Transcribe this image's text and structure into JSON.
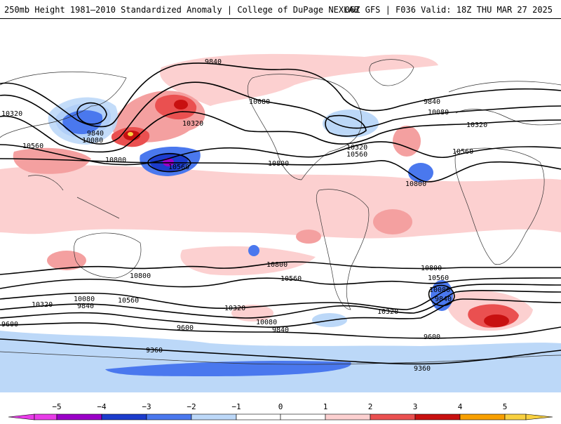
{
  "header": {
    "title_left": "250mb Height 1981–2010 Standardized Anomaly | College of DuPage NEXLAB",
    "title_right": "06Z GFS | F036 Valid: 18Z THU MAR 27 2025"
  },
  "colors": {
    "n5": "#e83ce8",
    "n4": "#9b00c8",
    "n3": "#1c3ccc",
    "n2": "#4a78ee",
    "n1": "#bcd8f8",
    "p1": "#fcd0d0",
    "p2": "#f4a0a0",
    "p3": "#ea5050",
    "p4": "#c81010",
    "p5": "#f8a000",
    "p6": "#f8d040",
    "contour": "#000000"
  },
  "colorbar": {
    "ticks": [
      "−5",
      "−4",
      "−3",
      "−2",
      "−1",
      "0",
      "1",
      "2",
      "3",
      "4",
      "5"
    ]
  },
  "contour_labels": [
    {
      "id": "l9840a",
      "text": "9840"
    },
    {
      "id": "l10080a",
      "text": "10080"
    },
    {
      "id": "l10320a",
      "text": "10320"
    },
    {
      "id": "l9840b",
      "text": "9840"
    },
    {
      "id": "l10080b",
      "text": "10080"
    },
    {
      "id": "l10560a",
      "text": "10560"
    },
    {
      "id": "l10800a",
      "text": "10800"
    },
    {
      "id": "l10560b",
      "text": "10560"
    },
    {
      "id": "l10320b",
      "text": "10320"
    },
    {
      "id": "l10800b",
      "text": "10800"
    },
    {
      "id": "l10320c",
      "text": "10320"
    },
    {
      "id": "l10560c",
      "text": "10560"
    },
    {
      "id": "l9840c",
      "text": "9840"
    },
    {
      "id": "l10080c",
      "text": "10080"
    },
    {
      "id": "l10320d",
      "text": "10320"
    },
    {
      "id": "l10560d",
      "text": "10560"
    },
    {
      "id": "l10800c",
      "text": "10800"
    },
    {
      "id": "l10800d",
      "text": "10800"
    },
    {
      "id": "l10800e",
      "text": "10800"
    },
    {
      "id": "l10560e",
      "text": "10560"
    },
    {
      "id": "l10560f",
      "text": "10560"
    },
    {
      "id": "l10320e",
      "text": "10320"
    },
    {
      "id": "l10080d",
      "text": "10080"
    },
    {
      "id": "l9840d",
      "text": "9840"
    },
    {
      "id": "l10320f",
      "text": "10320"
    },
    {
      "id": "l10080e",
      "text": "10080"
    },
    {
      "id": "l9840e",
      "text": "9840"
    },
    {
      "id": "l10800f",
      "text": "10800"
    },
    {
      "id": "l10560g",
      "text": "10560"
    },
    {
      "id": "l10080f",
      "text": "10080"
    },
    {
      "id": "l9840f",
      "text": "9840"
    },
    {
      "id": "l10320g",
      "text": "10320"
    },
    {
      "id": "l9600a",
      "text": "9600"
    },
    {
      "id": "l9600b",
      "text": "9600"
    },
    {
      "id": "l9600c",
      "text": "9600"
    },
    {
      "id": "l9360a",
      "text": "9360"
    },
    {
      "id": "l9360b",
      "text": "9360"
    }
  ]
}
